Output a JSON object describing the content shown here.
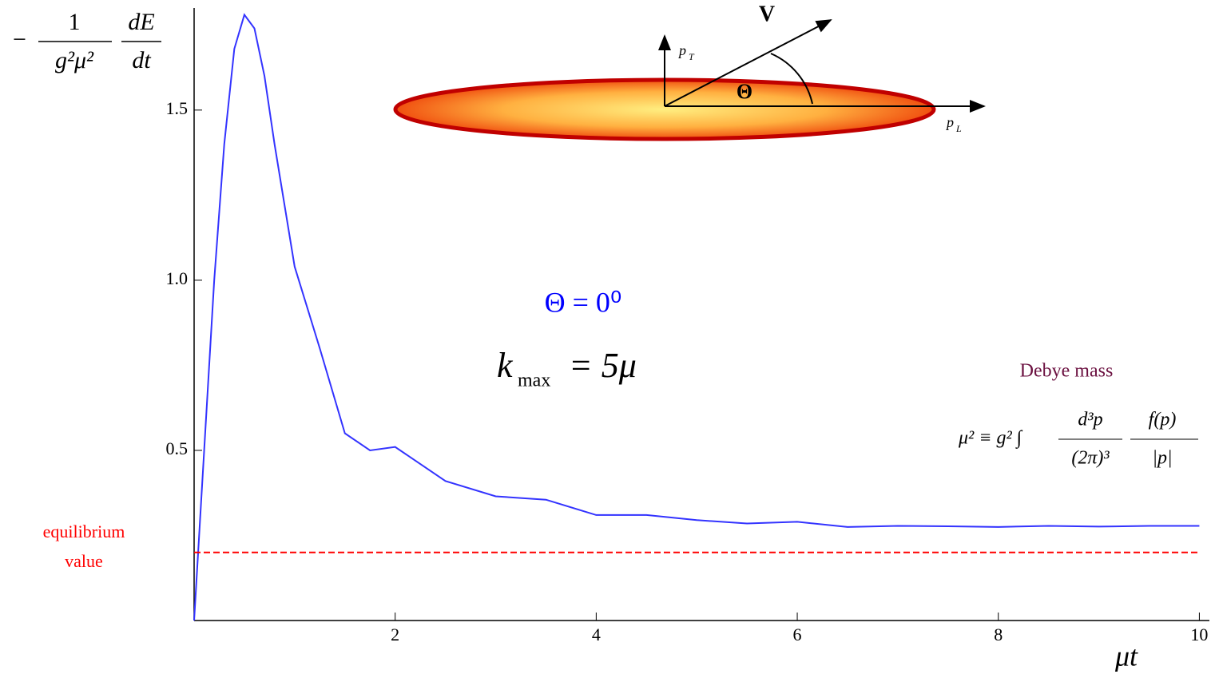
{
  "chart_data": {
    "type": "line",
    "series": [
      {
        "color": "#3333ff",
        "x": [
          0,
          0.1,
          0.2,
          0.3,
          0.4,
          0.5,
          0.6,
          0.7,
          0.8,
          1.0,
          1.25,
          1.5,
          1.75,
          2.0,
          2.5,
          3.0,
          3.5,
          4.0,
          4.5,
          5.0,
          5.5,
          6.0,
          6.5,
          7.0,
          7.5,
          8.0,
          8.5,
          9.0,
          9.5,
          10.0
        ],
        "values": [
          0,
          0.5,
          1.0,
          1.4,
          1.68,
          1.78,
          1.74,
          1.6,
          1.4,
          1.04,
          0.8,
          0.55,
          0.5,
          0.51,
          0.41,
          0.365,
          0.355,
          0.31,
          0.31,
          0.295,
          0.285,
          0.29,
          0.275,
          0.278,
          0.277,
          0.275,
          0.278,
          0.276,
          0.278,
          0.278
        ]
      },
      {
        "color": "#ff0000",
        "dashed": true,
        "x": [
          0,
          10
        ],
        "values": [
          0.2,
          0.2
        ]
      }
    ],
    "xlim": [
      0,
      10.1
    ],
    "ylim": [
      0,
      1.8
    ],
    "xticks": [
      2,
      4,
      6,
      8,
      10
    ],
    "yticks": [
      0.5,
      {
        "value": 1,
        "label": "1.0"
      },
      1.5
    ],
    "xlabel": "μt",
    "ylabel": {
      "sign": "−",
      "num1": "1",
      "den1": "g²μ²",
      "num2": "dE",
      "den2": "dt"
    },
    "annotations": {
      "equilibrium": [
        "equilibrium",
        "value"
      ],
      "theta": "Θ = 0⁰",
      "kmax": {
        "k": "k",
        "sub": "max",
        "rest": "= 5μ"
      },
      "debye": "Debye mass",
      "formula": {
        "lhs": "μ² ≡ g² ∫",
        "num1": "d³p",
        "den1": "(2π)³",
        "num2": "f(p)",
        "den2": "|p|"
      }
    },
    "diagram": {
      "v": "V",
      "pt": "p",
      "pt_sub": "T",
      "pl": "p",
      "pl_sub": "L",
      "angle": "Θ"
    }
  }
}
